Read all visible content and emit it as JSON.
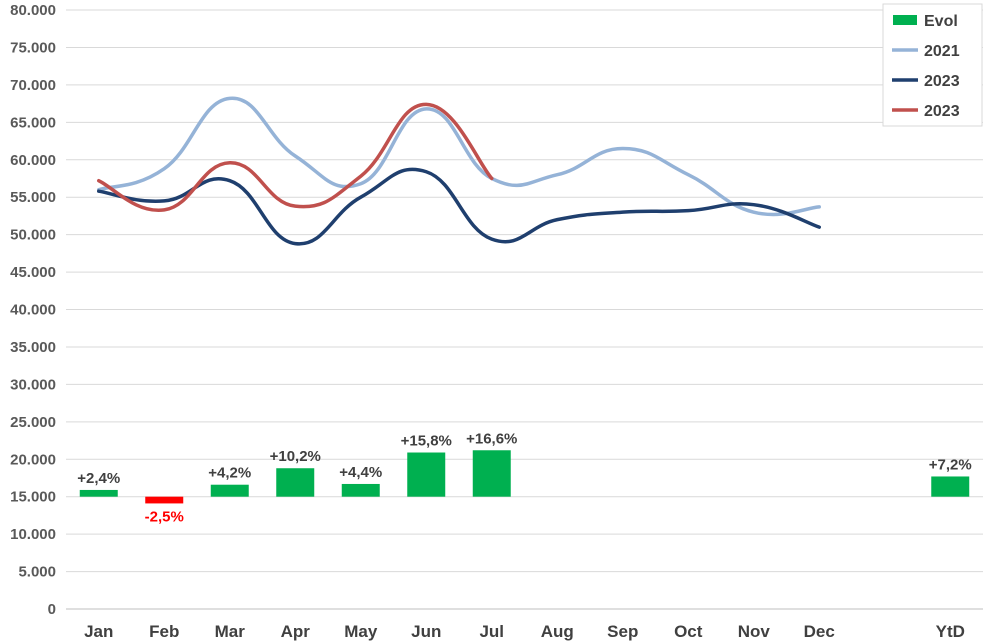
{
  "chart_data": {
    "type": "line",
    "categories": [
      "Jan",
      "Feb",
      "Mar",
      "Apr",
      "May",
      "Jun",
      "Jul",
      "Aug",
      "Sep",
      "Oct",
      "Nov",
      "Dec",
      "",
      "YtD"
    ],
    "ylim": [
      0,
      80000
    ],
    "yticks": [
      0,
      5000,
      10000,
      15000,
      20000,
      25000,
      30000,
      35000,
      40000,
      45000,
      50000,
      55000,
      60000,
      65000,
      70000,
      75000,
      80000
    ],
    "ytick_labels": [
      "0",
      "5.000",
      "10.000",
      "15.000",
      "20.000",
      "25.000",
      "30.000",
      "35.000",
      "40.000",
      "45.000",
      "50.000",
      "55.000",
      "60.000",
      "65.000",
      "70.000",
      "75.000",
      "80.000"
    ],
    "grid": true,
    "legend_position": "top-right",
    "bar_series": {
      "name": "Evol",
      "base": 15000,
      "values": [
        15900,
        14100,
        16600,
        18800,
        16700,
        20900,
        21200,
        null,
        null,
        null,
        null,
        null,
        null,
        17700
      ],
      "labels": [
        "+2,4%",
        "-2,5%",
        "+4,2%",
        "+10,2%",
        "+4,4%",
        "+15,8%",
        "+16,6%",
        "",
        "",
        "",
        "",
        "",
        "",
        "+7,2%"
      ],
      "positive_color": "#00b050",
      "negative_color": "#ff0000"
    },
    "series": [
      {
        "name": "2021",
        "color": "#95b3d7",
        "values": [
          56000,
          58800,
          68200,
          60500,
          56800,
          66800,
          57500,
          58000,
          61500,
          58000,
          53000,
          53700,
          null,
          null
        ]
      },
      {
        "name": "2023",
        "color": "#1f3f6e",
        "values": [
          55800,
          54500,
          57200,
          48800,
          55000,
          58400,
          49400,
          52000,
          53000,
          53200,
          54000,
          51000,
          null,
          null
        ]
      },
      {
        "name": "2023",
        "color": "#c0504d",
        "values": [
          57200,
          53300,
          59600,
          53800,
          57800,
          67400,
          57500,
          null,
          null,
          null,
          null,
          null,
          null,
          null
        ]
      }
    ]
  }
}
